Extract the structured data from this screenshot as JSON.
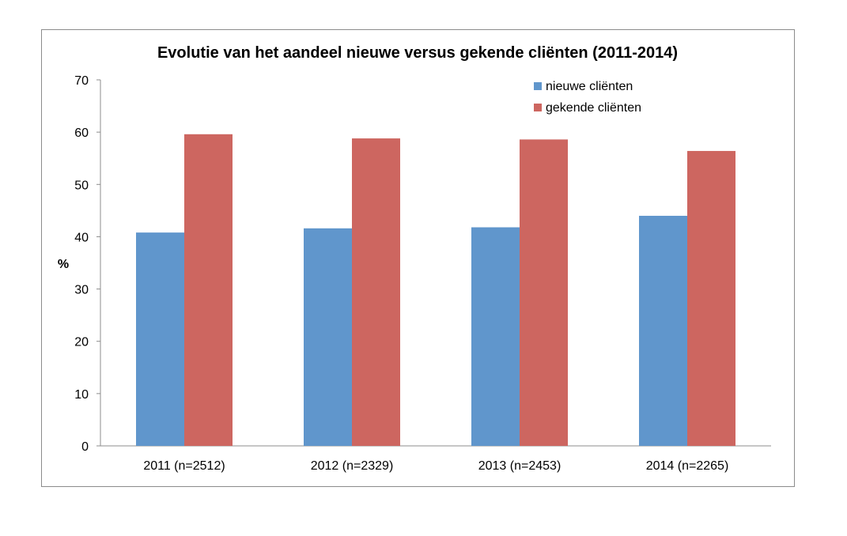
{
  "chart_data": {
    "type": "bar",
    "title": "Evolutie van het aandeel nieuwe versus gekende cliënten (2011-2014)",
    "xlabel": "",
    "ylabel": "%",
    "ylim": [
      0,
      70
    ],
    "yticks": [
      0,
      10,
      20,
      30,
      40,
      50,
      60,
      70
    ],
    "categories": [
      "2011 (n=2512)",
      "2012 (n=2329)",
      "2013 (n=2453)",
      "2014 (n=2265)"
    ],
    "series": [
      {
        "name": "nieuwe cliënten",
        "color": "#6096cc",
        "values": [
          40.8,
          41.6,
          41.8,
          44.0
        ]
      },
      {
        "name": "gekende cliënten",
        "color": "#cd6660",
        "values": [
          59.6,
          58.8,
          58.6,
          56.4
        ]
      }
    ],
    "grid": false,
    "legend_position": "top-right"
  }
}
